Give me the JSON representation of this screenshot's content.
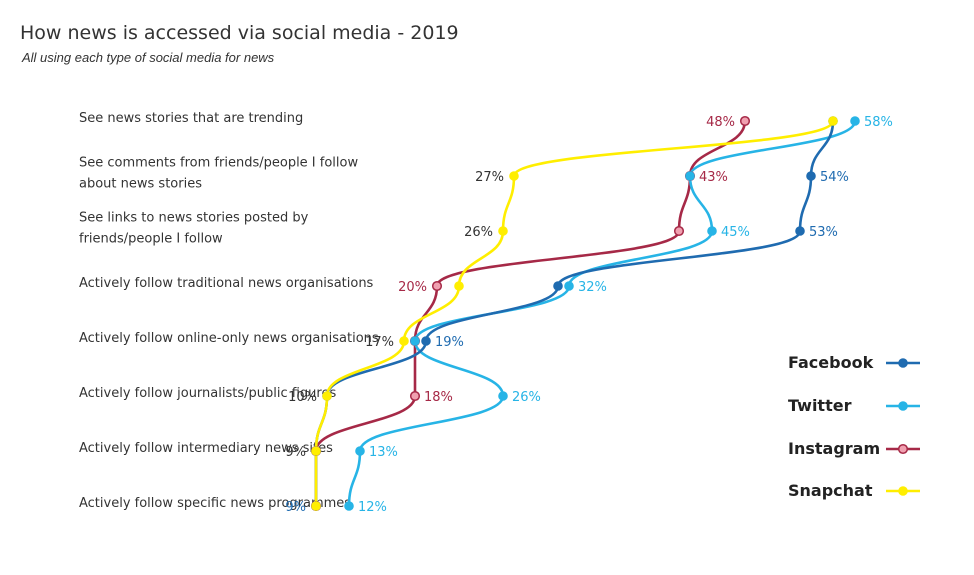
{
  "chart_data": {
    "type": "line",
    "title": "How news is accessed via social media - 2019",
    "subtitle": "All using each type of social media for news",
    "categories": [
      [
        "See news stories that are trending"
      ],
      [
        "See comments from friends/people I follow",
        "about news stories"
      ],
      [
        "See links to news stories posted by",
        "friends/people I follow"
      ],
      [
        "Actively follow traditional news organisations"
      ],
      [
        "Actively follow online-only news organisations"
      ],
      [
        "Actively follow journalists/public figures"
      ],
      [
        "Actively follow intermediary news sites"
      ],
      [
        "Actively follow specific news programmes"
      ]
    ],
    "series": [
      {
        "name": "Facebook",
        "color": "#1f6bb0",
        "values": [
          56,
          54,
          53,
          31,
          19,
          10,
          9,
          9
        ],
        "labels": [
          null,
          "54%",
          "53%",
          null,
          "19%",
          null,
          null,
          "9%"
        ]
      },
      {
        "name": "Twitter",
        "color": "#27b4e6",
        "values": [
          58,
          43,
          45,
          32,
          18,
          26,
          13,
          12
        ],
        "labels": [
          "58%",
          null,
          "45%",
          "32%",
          null,
          "26%",
          "13%",
          "12%"
        ]
      },
      {
        "name": "Instagram",
        "color": "#a62947",
        "values": [
          48,
          43,
          42,
          20,
          18,
          18,
          9,
          9
        ],
        "labels": [
          "48%",
          "43%",
          null,
          "20%",
          null,
          "18%",
          null,
          null
        ]
      },
      {
        "name": "Snapchat",
        "color": "#ffee00",
        "values": [
          56,
          27,
          26,
          22,
          17,
          10,
          9,
          9
        ],
        "labels": [
          null,
          "27%",
          "26%",
          null,
          "17%",
          "10%",
          "9%",
          null
        ]
      }
    ],
    "xlim": [
      0,
      100
    ],
    "unit": "%",
    "legend": "right"
  }
}
